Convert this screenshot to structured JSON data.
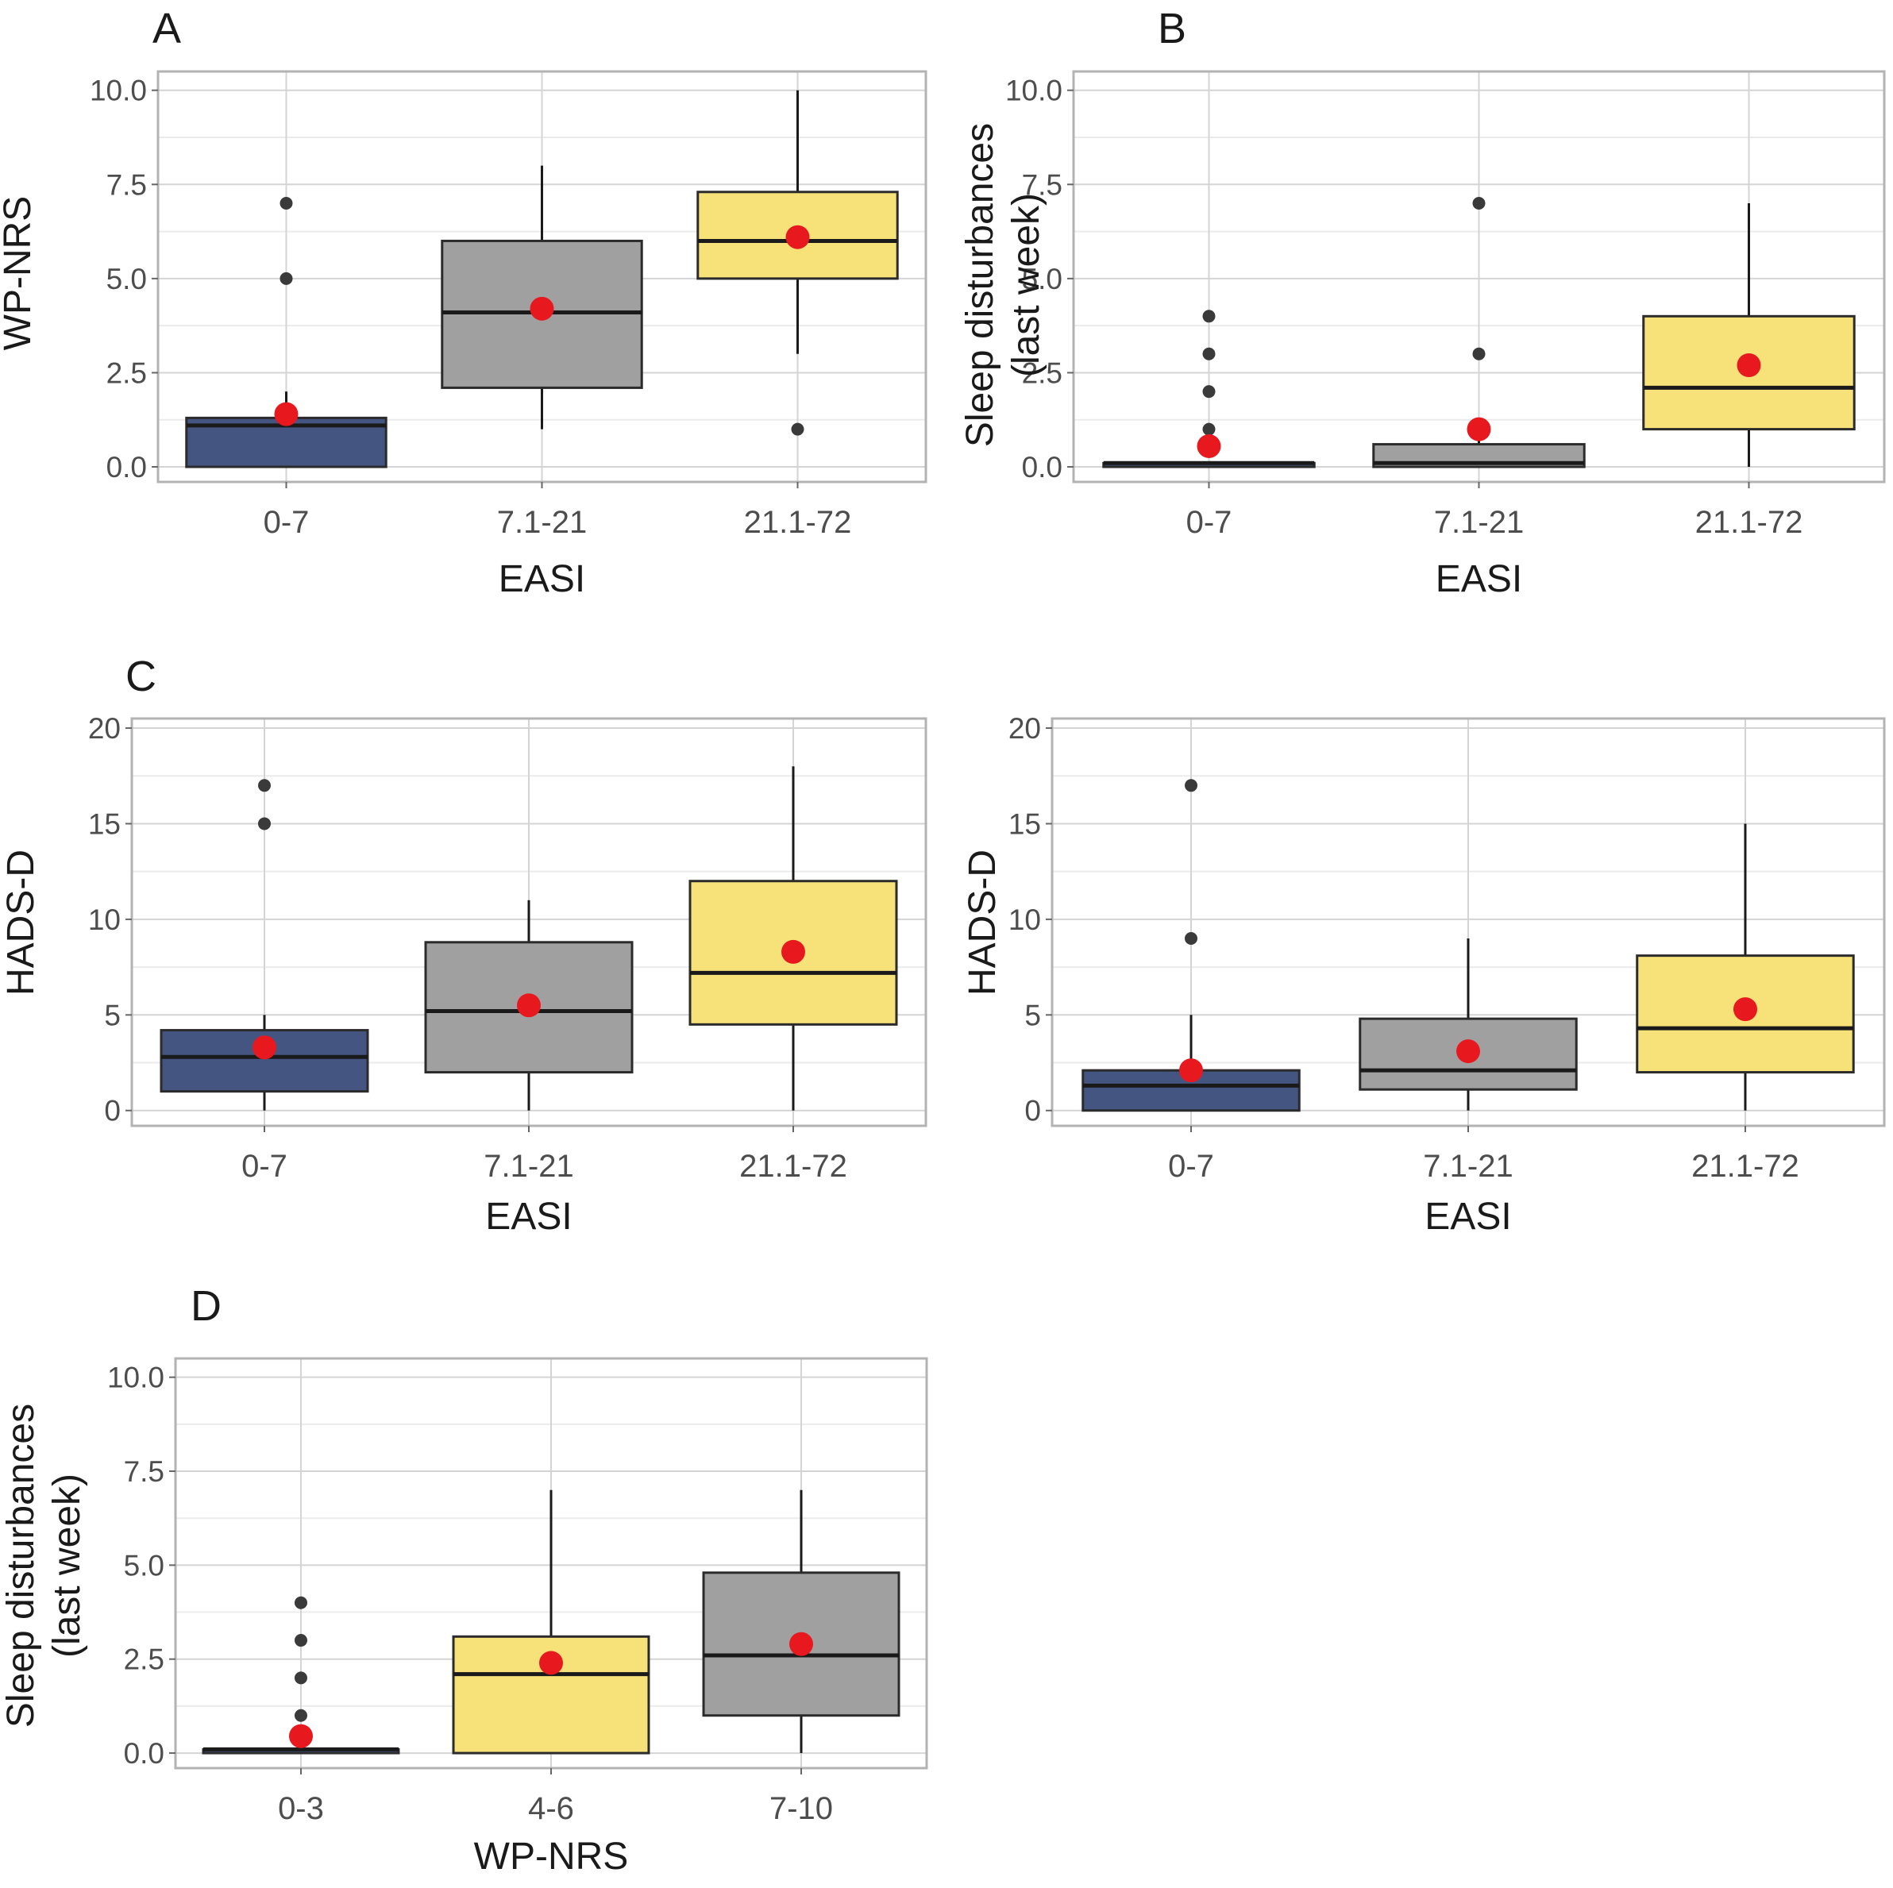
{
  "chart_data": [
    {
      "type": "boxplot",
      "panel_label": "A",
      "xlabel": "EASI",
      "ylabel": [
        "WP-NRS"
      ],
      "categories": [
        "0-7",
        "7.1-21",
        "21.1-72"
      ],
      "ylim": [
        -0.4,
        10.5
      ],
      "yticks": [
        "0.0",
        "2.5",
        "5.0",
        "7.5",
        "10.0"
      ],
      "grid": true,
      "boxes": [
        {
          "category": "0-7",
          "color": "#445581",
          "whisker_low": 0,
          "q1": 0,
          "median": 1.1,
          "q3": 1.3,
          "whisker_high": 2,
          "mean": 1.4,
          "outliers": [
            5,
            7
          ]
        },
        {
          "category": "7.1-21",
          "color": "#a0a0a0",
          "whisker_low": 1,
          "q1": 2.1,
          "median": 4.1,
          "q3": 6,
          "whisker_high": 8,
          "mean": 4.2,
          "outliers": []
        },
        {
          "category": "21.1-72",
          "color": "#f7e27a",
          "whisker_low": 3,
          "q1": 5,
          "median": 6,
          "q3": 7.3,
          "whisker_high": 10,
          "mean": 6.1,
          "outliers": [
            1
          ]
        }
      ]
    },
    {
      "type": "boxplot",
      "panel_label": "B",
      "xlabel": "EASI",
      "ylabel": [
        "Sleep disturbances",
        "(last week)"
      ],
      "categories": [
        "0-7",
        "7.1-21",
        "21.1-72"
      ],
      "ylim": [
        -0.4,
        10.5
      ],
      "yticks": [
        "0.0",
        "2.5",
        "5.0",
        "7.5",
        "10.0"
      ],
      "grid": true,
      "boxes": [
        {
          "category": "0-7",
          "color": "#445581",
          "whisker_low": 0,
          "q1": 0,
          "median": 0.1,
          "q3": 0.1,
          "whisker_high": 0.1,
          "mean": 0.55,
          "outliers": [
            1,
            2,
            3,
            4
          ]
        },
        {
          "category": "7.1-21",
          "color": "#a0a0a0",
          "whisker_low": 0,
          "q1": 0,
          "median": 0.1,
          "q3": 0.6,
          "whisker_high": 1,
          "mean": 1.0,
          "outliers": [
            3,
            7
          ]
        },
        {
          "category": "21.1-72",
          "color": "#f7e27a",
          "whisker_low": 0,
          "q1": 1,
          "median": 2.1,
          "q3": 4,
          "whisker_high": 7,
          "mean": 2.7,
          "outliers": []
        }
      ]
    },
    {
      "type": "boxplot",
      "panel_label": "C",
      "xlabel": "EASI",
      "ylabel": [
        "HADS-D"
      ],
      "categories": [
        "0-7",
        "7.1-21",
        "21.1-72"
      ],
      "ylim": [
        -0.8,
        20.5
      ],
      "yticks": [
        "0",
        "5",
        "10",
        "15",
        "20"
      ],
      "grid": true,
      "boxes": [
        {
          "category": "0-7",
          "color": "#445581",
          "whisker_low": 0,
          "q1": 1,
          "median": 2.8,
          "q3": 4.2,
          "whisker_high": 5,
          "mean": 3.3,
          "outliers": [
            15,
            17
          ]
        },
        {
          "category": "7.1-21",
          "color": "#a0a0a0",
          "whisker_low": 0,
          "q1": 2,
          "median": 5.2,
          "q3": 8.8,
          "whisker_high": 11,
          "mean": 5.5,
          "outliers": []
        },
        {
          "category": "21.1-72",
          "color": "#f7e27a",
          "whisker_low": 0,
          "q1": 4.5,
          "median": 7.2,
          "q3": 12,
          "whisker_high": 18,
          "mean": 8.3,
          "outliers": []
        }
      ]
    },
    {
      "type": "boxplot",
      "panel_label": "",
      "xlabel": "EASI",
      "ylabel": [
        "HADS-D"
      ],
      "categories": [
        "0-7",
        "7.1-21",
        "21.1-72"
      ],
      "ylim": [
        -0.8,
        20.5
      ],
      "yticks": [
        "0",
        "5",
        "10",
        "15",
        "20"
      ],
      "grid": true,
      "boxes": [
        {
          "category": "0-7",
          "color": "#445581",
          "whisker_low": 0,
          "q1": 0,
          "median": 1.3,
          "q3": 2.1,
          "whisker_high": 5,
          "mean": 2.1,
          "outliers": [
            9,
            17
          ]
        },
        {
          "category": "7.1-21",
          "color": "#a0a0a0",
          "whisker_low": 0,
          "q1": 1.1,
          "median": 2.1,
          "q3": 4.8,
          "whisker_high": 9,
          "mean": 3.1,
          "outliers": []
        },
        {
          "category": "21.1-72",
          "color": "#f7e27a",
          "whisker_low": 0,
          "q1": 2,
          "median": 4.3,
          "q3": 8.1,
          "whisker_high": 15,
          "mean": 5.3,
          "outliers": []
        }
      ]
    },
    {
      "type": "boxplot",
      "panel_label": "D",
      "xlabel": "WP-NRS",
      "ylabel": [
        "Sleep disturbances",
        "(last week)"
      ],
      "categories": [
        "0-3",
        "4-6",
        "7-10"
      ],
      "ylim": [
        -0.4,
        10.5
      ],
      "yticks": [
        "0.0",
        "2.5",
        "5.0",
        "7.5",
        "10.0"
      ],
      "grid": true,
      "boxes": [
        {
          "category": "0-3",
          "color": "#445581",
          "whisker_low": 0,
          "q1": 0,
          "median": 0.1,
          "q3": 0.1,
          "whisker_high": 0.1,
          "mean": 0.45,
          "outliers": [
            1,
            2,
            3,
            4
          ]
        },
        {
          "category": "4-6",
          "color": "#f7e27a",
          "whisker_low": 0,
          "q1": 0,
          "median": 2.1,
          "q3": 3.1,
          "whisker_high": 7,
          "mean": 2.4,
          "outliers": []
        },
        {
          "category": "7-10",
          "color": "#a0a0a0",
          "whisker_low": 0,
          "q1": 1,
          "median": 2.6,
          "q3": 4.8,
          "whisker_high": 7,
          "mean": 2.9,
          "outliers": []
        }
      ]
    }
  ],
  "colors": {
    "mean_marker": "#e8191e",
    "outlier": "#3a3a3a",
    "panel_border": "#b3b3b3",
    "grid_major": "#d4d4d4",
    "grid_minor": "#ebebeb"
  }
}
